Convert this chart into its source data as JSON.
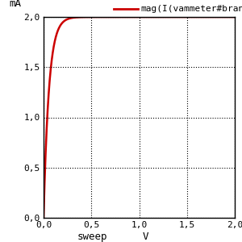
{
  "ylabel": "mA",
  "xlabel_left": "sweep",
  "xlabel_right": "V",
  "legend_label": "mag(I(vammeter#branch))",
  "line_color": "#cc0000",
  "line_width": 1.8,
  "xlim": [
    0,
    2.0
  ],
  "ylim": [
    0,
    2.0
  ],
  "xticks": [
    0.0,
    0.5,
    1.0,
    1.5,
    2.0
  ],
  "yticks": [
    0.0,
    0.5,
    1.0,
    1.5,
    2.0
  ],
  "xtick_labels": [
    "0,0",
    "0,5",
    "1,0",
    "1,5",
    "2,0"
  ],
  "ytick_labels": [
    "0,0",
    "0,5",
    "1,0",
    "1,5",
    "2,0"
  ],
  "grid_color": "#000000",
  "background_color": "#ffffff",
  "border_color": "#000000",
  "saturation_current": 2.0,
  "curve_sharpness": 18
}
